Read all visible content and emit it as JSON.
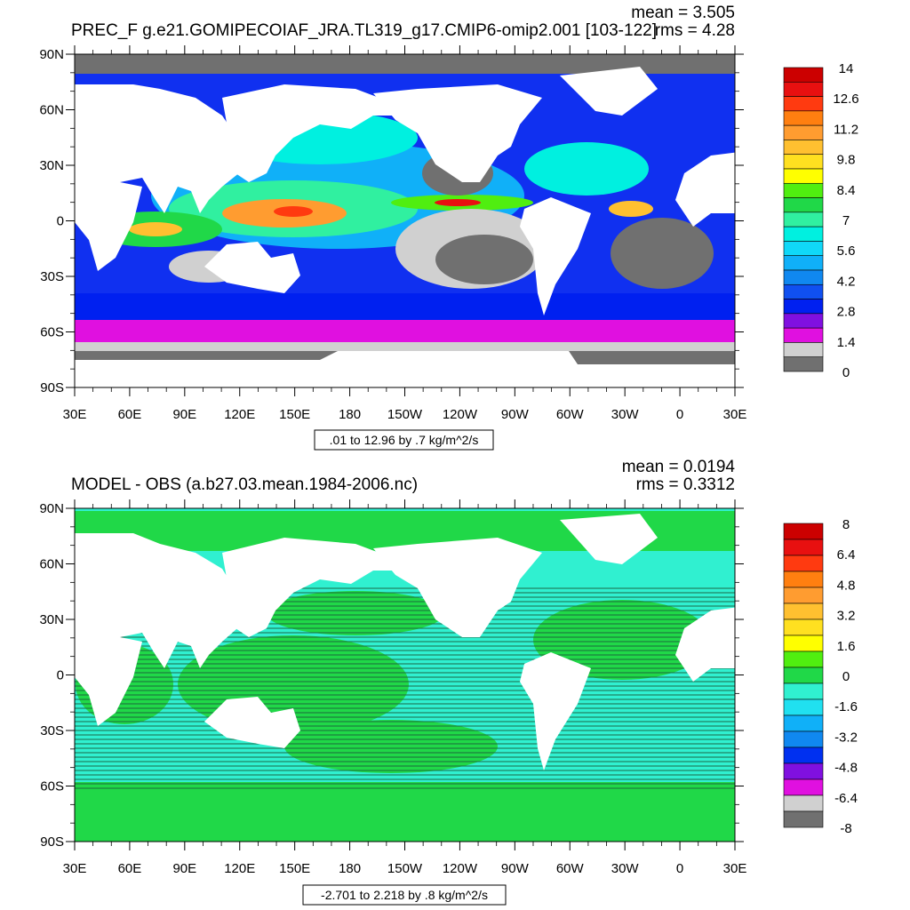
{
  "chart_data": [
    {
      "type": "heatmap",
      "title": "PREC_F g.e21.GOMIPECOIAF_JRA.TL319_g17.CMIP6-omip2.001 [103-122]",
      "stats": {
        "mean": "mean = 3.505",
        "rms": "rms = 4.28"
      },
      "range_note": ".01 to 12.96 by .7 kg/m^2/s",
      "x_ticks": [
        "30E",
        "60E",
        "90E",
        "120E",
        "150E",
        "180",
        "150W",
        "120W",
        "90W",
        "60W",
        "30W",
        "0",
        "30E"
      ],
      "y_ticks": [
        "90N",
        "60N",
        "30N",
        "0",
        "30S",
        "60S",
        "90S"
      ],
      "xlim": [
        30,
        390
      ],
      "ylim": [
        -90,
        90
      ],
      "colorbar": {
        "labels": [
          "14",
          "12.6",
          "11.2",
          "9.8",
          "8.4",
          "7",
          "5.6",
          "4.2",
          "2.8",
          "1.4",
          "0"
        ],
        "colors": [
          "#cc0000",
          "#e81010",
          "#ff3a10",
          "#ff7f10",
          "#ff9c30",
          "#ffc030",
          "#ffe020",
          "#ffff00",
          "#50ee10",
          "#20d848",
          "#30f0a0",
          "#00f0e0",
          "#10d8f8",
          "#10b0f8",
          "#1088f0",
          "#1050f0",
          "#0020f0",
          "#8010e0",
          "#e010e0",
          "#d0d0d0",
          "#707070"
        ]
      }
    },
    {
      "type": "heatmap",
      "title": "MODEL - OBS (a.b27.03.mean.1984-2006.nc)",
      "stats": {
        "mean": "mean = 0.0194",
        "rms": "rms = 0.3312"
      },
      "range_note": "-2.701 to 2.218 by .8 kg/m^2/s",
      "x_ticks": [
        "30E",
        "60E",
        "90E",
        "120E",
        "150E",
        "180",
        "150W",
        "120W",
        "90W",
        "60W",
        "30W",
        "0",
        "30E"
      ],
      "y_ticks": [
        "90N",
        "60N",
        "30N",
        "0",
        "30S",
        "60S",
        "90S"
      ],
      "xlim": [
        30,
        390
      ],
      "ylim": [
        -90,
        90
      ],
      "colorbar": {
        "labels": [
          "8",
          "6.4",
          "4.8",
          "3.2",
          "1.6",
          "0",
          "-1.6",
          "-3.2",
          "-4.8",
          "-6.4",
          "-8"
        ],
        "colors": [
          "#cc0000",
          "#e81010",
          "#ff3a10",
          "#ff7f10",
          "#ff9c30",
          "#ffc030",
          "#ffe020",
          "#ffff00",
          "#50ee10",
          "#20d848",
          "#30f0d0",
          "#20e0f0",
          "#10b0f8",
          "#1088f0",
          "#0030f0",
          "#8010e0",
          "#e010e0",
          "#d0d0d0",
          "#707070"
        ]
      }
    }
  ]
}
